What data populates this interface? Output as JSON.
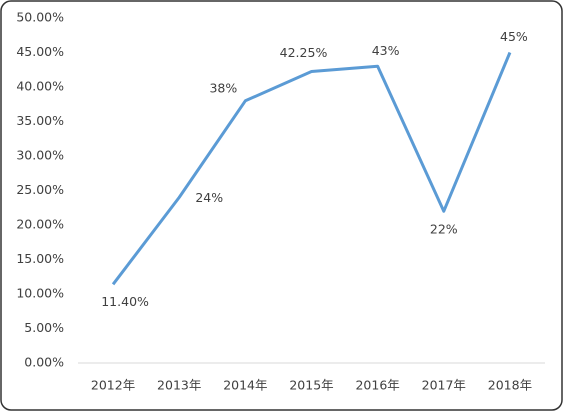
{
  "chart_data": {
    "type": "line",
    "categories": [
      "2012年",
      "2013年",
      "2014年",
      "2015年",
      "2016年",
      "2017年",
      "2018年"
    ],
    "series": [
      {
        "color": "#5b9bd5",
        "values": [
          11.4,
          24,
          38,
          42.25,
          43,
          22,
          45
        ],
        "value_labels": [
          "11.40%",
          "24%",
          "38%",
          "42.25%",
          "43%",
          "22%",
          "45%"
        ]
      }
    ],
    "ylim": [
      0,
      50
    ],
    "yticks": [
      {
        "value": 0,
        "label": "0.00%"
      },
      {
        "value": 5,
        "label": "5.00%"
      },
      {
        "value": 10,
        "label": "10.00%"
      },
      {
        "value": 15,
        "label": "15.00%"
      },
      {
        "value": 20,
        "label": "20.00%"
      },
      {
        "value": 25,
        "label": "25.00%"
      },
      {
        "value": 30,
        "label": "30.00%"
      },
      {
        "value": 35,
        "label": "35.00%"
      },
      {
        "value": 40,
        "label": "40.00%"
      },
      {
        "value": 45,
        "label": "45.00%"
      },
      {
        "value": 50,
        "label": "50.00%"
      }
    ],
    "grid": false
  }
}
